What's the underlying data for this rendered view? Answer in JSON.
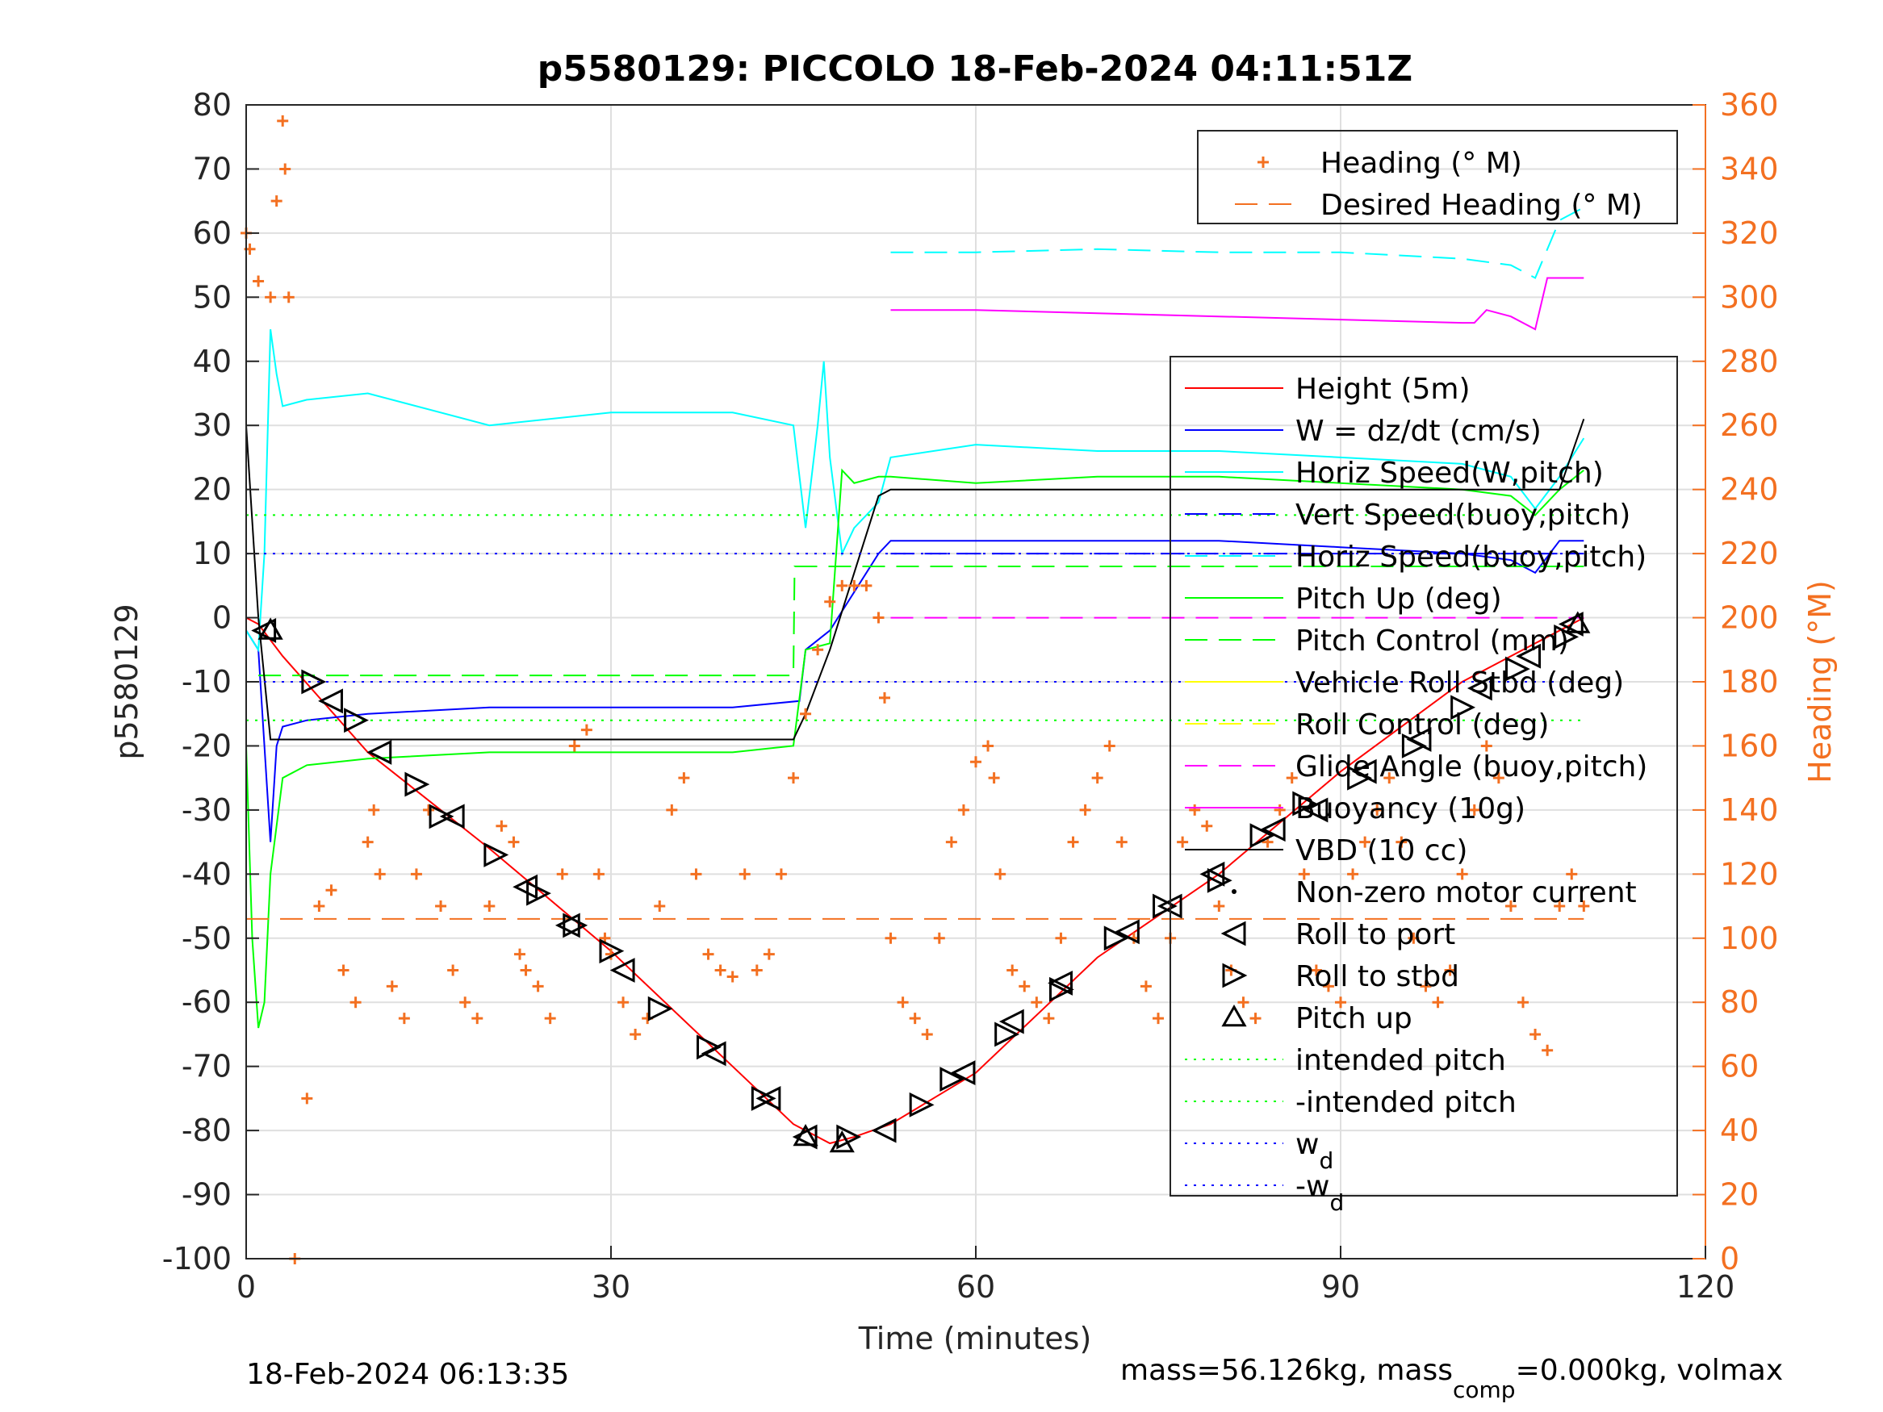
{
  "chart_data": {
    "type": "line",
    "title": "p5580129: PICCOLO 18-Feb-2024 04:11:51Z",
    "xlabel": "Time (minutes)",
    "ylabel": "p5580129",
    "y2label": "Heading (°M)",
    "xlim": [
      0,
      120
    ],
    "ylim": [
      -100,
      80
    ],
    "y2lim": [
      0,
      360
    ],
    "xticks": [
      0,
      30,
      60,
      90,
      120
    ],
    "yticks": [
      -100,
      -90,
      -80,
      -70,
      -60,
      -50,
      -40,
      -30,
      -20,
      -10,
      0,
      10,
      20,
      30,
      40,
      50,
      60,
      70,
      80
    ],
    "y2ticks": [
      0,
      20,
      40,
      60,
      80,
      100,
      120,
      140,
      160,
      180,
      200,
      220,
      240,
      260,
      280,
      300,
      320,
      340,
      360
    ],
    "grid": true,
    "footer_left": "18-Feb-2024 06:13:35",
    "footer_right_main": "mass=56.126kg, mass",
    "footer_right_sub": "comp",
    "footer_right_tail": "=0.000kg, volmax",
    "legend_top": [
      {
        "name": "Heading (° M)",
        "color": "#f37021",
        "style": "plus"
      },
      {
        "name": "Desired Heading (° M)",
        "color": "#f37021",
        "style": "dash"
      }
    ],
    "legend_main": [
      {
        "name": "Height (5m)",
        "color": "#ff0000",
        "style": "solid"
      },
      {
        "name": "W = dz/dt (cm/s)",
        "color": "#0000ff",
        "style": "solid"
      },
      {
        "name": "Horiz Speed(W,pitch)",
        "color": "#00ffff",
        "style": "solid"
      },
      {
        "name": "Vert Speed(buoy,pitch)",
        "color": "#0000ff",
        "style": "dash"
      },
      {
        "name": "Horiz Speed(buoy,pitch)",
        "color": "#00ffff",
        "style": "dash"
      },
      {
        "name": "Pitch Up (deg)",
        "color": "#00ff00",
        "style": "solid"
      },
      {
        "name": "Pitch Control (mm)",
        "color": "#00ff00",
        "style": "dash"
      },
      {
        "name": "Vehicle Roll Stbd (deg)",
        "color": "#ffff00",
        "style": "solid"
      },
      {
        "name": "Roll Control (deg)",
        "color": "#ffff00",
        "style": "dash"
      },
      {
        "name": "Glide Angle (buoy,pitch)",
        "color": "#ff00ff",
        "style": "dash"
      },
      {
        "name": "Buoyancy (10g)",
        "color": "#ff00ff",
        "style": "solid"
      },
      {
        "name": "VBD (10 cc)",
        "color": "#000000",
        "style": "solid"
      },
      {
        "name": "Non-zero motor current",
        "color": "#000000",
        "style": "dot"
      },
      {
        "name": "Roll to port",
        "color": "#000000",
        "style": "tri-left"
      },
      {
        "name": "Roll to stbd",
        "color": "#000000",
        "style": "tri-right"
      },
      {
        "name": "Pitch up",
        "color": "#000000",
        "style": "tri-up"
      },
      {
        "name": "intended pitch",
        "color": "#00ff00",
        "style": "dotted"
      },
      {
        "name": "-intended pitch",
        "color": "#00ff00",
        "style": "dotted"
      },
      {
        "name": "w",
        "sub": "d",
        "color": "#0000ff",
        "style": "dotted"
      },
      {
        "name": "-w",
        "sub": "d",
        "color": "#0000ff",
        "style": "dotted"
      }
    ],
    "series": [
      {
        "name": "Height (5m)",
        "axis": "left",
        "color": "#ff0000",
        "x": [
          0,
          1,
          3,
          10,
          20,
          30,
          40,
          45,
          48,
          50,
          53,
          60,
          70,
          80,
          90,
          100,
          110
        ],
        "y": [
          0,
          -1,
          -6,
          -21,
          -36,
          -52,
          -70,
          -79,
          -82,
          -81,
          -79,
          -71,
          -53,
          -40,
          -24,
          -10,
          0
        ]
      },
      {
        "name": "W = dz/dt (cm/s)",
        "axis": "left",
        "color": "#0000ff",
        "x": [
          0,
          1,
          1.5,
          2,
          2.5,
          3,
          5,
          10,
          20,
          30,
          40,
          45.5,
          46,
          48,
          50,
          52,
          53,
          60,
          70,
          80,
          90,
          100,
          104,
          106,
          108,
          110
        ],
        "y": [
          -2,
          -5,
          -20,
          -35,
          -20,
          -17,
          -16,
          -15,
          -14,
          -14,
          -14,
          -13,
          -5,
          -2,
          4,
          10,
          12,
          12,
          12,
          12,
          11,
          10,
          9,
          7,
          12,
          12
        ]
      },
      {
        "name": "Horiz Speed(W,pitch)",
        "axis": "left",
        "color": "#00ffff",
        "x": [
          0,
          1,
          1.5,
          2,
          2.5,
          3,
          5,
          10,
          20,
          30,
          40,
          45,
          46,
          47,
          47.5,
          48,
          49,
          50,
          52,
          53,
          60,
          70,
          80,
          90,
          100,
          104,
          106,
          108,
          110
        ],
        "y": [
          -2,
          -5,
          10,
          45,
          38,
          33,
          34,
          35,
          30,
          32,
          32,
          30,
          14,
          30,
          40,
          25,
          10,
          14,
          18,
          25,
          27,
          26,
          26,
          25,
          24,
          22,
          17,
          22,
          28
        ]
      },
      {
        "name": "Vert Speed(buoy,pitch)",
        "axis": "left",
        "color": "#0000ff",
        "x": [
          53,
          110
        ],
        "y": [
          10,
          10
        ]
      },
      {
        "name": "Horiz Speed(buoy,pitch)",
        "axis": "left",
        "color": "#00ffff",
        "x": [
          53,
          60,
          70,
          80,
          90,
          100,
          104,
          106,
          108,
          110
        ],
        "y": [
          57,
          57,
          57.5,
          57,
          57,
          56,
          55,
          53,
          62,
          64
        ]
      },
      {
        "name": "Pitch Up (deg)",
        "axis": "left",
        "color": "#00ff00",
        "x": [
          0,
          0.5,
          1,
          1.5,
          2,
          3,
          5,
          10,
          20,
          30,
          40,
          45,
          46,
          48,
          49,
          50,
          52,
          53,
          60,
          70,
          80,
          90,
          100,
          104,
          106,
          108,
          110
        ],
        "y": [
          -20,
          -50,
          -64,
          -60,
          -40,
          -25,
          -23,
          -22,
          -21,
          -21,
          -21,
          -20,
          -5,
          -4,
          23,
          21,
          22,
          22,
          21,
          22,
          22,
          21,
          20,
          19,
          16,
          20,
          23
        ]
      },
      {
        "name": "Pitch Control (mm)",
        "axis": "left",
        "color": "#00ff00",
        "x": [
          1,
          45,
          45.1,
          110
        ],
        "y": [
          -9,
          -9,
          8,
          8
        ]
      },
      {
        "name": "Glide Angle (buoy,pitch)",
        "axis": "left",
        "color": "#ff00ff",
        "x": [
          53,
          110
        ],
        "y": [
          0,
          0
        ]
      },
      {
        "name": "Buoyancy (10g)",
        "axis": "left",
        "color": "#ff00ff",
        "x": [
          53,
          60,
          70,
          80,
          90,
          100,
          101,
          102,
          104,
          106,
          107,
          110
        ],
        "y": [
          48,
          48,
          47.5,
          47,
          46.5,
          46,
          46,
          48,
          47,
          45,
          53,
          53
        ]
      },
      {
        "name": "VBD (10 cc)",
        "axis": "left",
        "color": "#000000",
        "x": [
          0,
          1,
          2,
          45,
          46,
          48,
          52,
          53,
          108,
          110
        ],
        "y": [
          30,
          0,
          -19,
          -19,
          -15,
          -5,
          19,
          20,
          20,
          31
        ]
      },
      {
        "name": "intended pitch",
        "axis": "left",
        "color": "#00ff00",
        "x": [
          0,
          110
        ],
        "y": [
          16,
          16
        ]
      },
      {
        "name": "-intended pitch",
        "axis": "left",
        "color": "#00ff00",
        "x": [
          0,
          110
        ],
        "y": [
          -16,
          -16
        ]
      },
      {
        "name": "w_d",
        "axis": "left",
        "color": "#0000ff",
        "x": [
          0,
          110
        ],
        "y": [
          10,
          10
        ]
      },
      {
        "name": "-w_d",
        "axis": "left",
        "color": "#0000ff",
        "x": [
          0,
          110
        ],
        "y": [
          -10,
          -10
        ]
      },
      {
        "name": "Desired Heading (° M)",
        "axis": "right",
        "color": "#f37021",
        "x": [
          0,
          110
        ],
        "y": [
          106,
          106
        ]
      },
      {
        "name": "Heading (° M)",
        "axis": "right",
        "color": "#f37021",
        "style": "plus",
        "x": [
          0,
          0.3,
          1,
          2,
          2.5,
          3,
          3.2,
          3.5,
          4,
          5,
          6,
          7,
          8,
          9,
          10,
          10.5,
          11,
          12,
          13,
          14,
          15,
          16,
          17,
          18,
          19,
          20,
          21,
          22,
          22.5,
          23,
          24,
          25,
          26,
          27,
          28,
          29,
          29.5,
          30,
          31,
          32,
          33,
          34,
          35,
          36,
          37,
          38,
          39,
          40,
          41,
          42,
          43,
          44,
          45,
          46,
          47,
          48,
          49,
          50,
          51,
          52,
          52.5,
          53,
          54,
          55,
          56,
          57,
          58,
          59,
          60,
          61,
          61.5,
          62,
          63,
          64,
          65,
          66,
          67,
          68,
          69,
          70,
          71,
          72,
          73,
          74,
          75,
          76,
          77,
          78,
          79,
          80,
          81,
          82,
          83,
          84,
          85,
          86,
          87,
          88,
          89,
          90,
          91,
          92,
          93,
          94,
          95,
          96,
          97,
          98,
          99,
          100,
          101,
          102,
          103,
          104,
          105,
          106,
          107,
          108,
          109,
          110
        ],
        "y": [
          320,
          315,
          305,
          300,
          330,
          355,
          340,
          300,
          0,
          50,
          110,
          115,
          90,
          80,
          130,
          140,
          120,
          85,
          75,
          120,
          140,
          110,
          90,
          80,
          75,
          110,
          135,
          130,
          95,
          90,
          85,
          75,
          120,
          160,
          165,
          120,
          100,
          95,
          80,
          70,
          75,
          110,
          140,
          150,
          120,
          95,
          90,
          88,
          120,
          90,
          95,
          120,
          150,
          170,
          190,
          205,
          210,
          210,
          210,
          200,
          175,
          100,
          80,
          75,
          70,
          100,
          130,
          140,
          155,
          160,
          150,
          120,
          90,
          85,
          80,
          75,
          100,
          130,
          140,
          150,
          160,
          130,
          100,
          85,
          75,
          100,
          130,
          140,
          135,
          110,
          90,
          80,
          75,
          130,
          140,
          150,
          120,
          90,
          85,
          80,
          120,
          130,
          140,
          150,
          130,
          100,
          85,
          80,
          90,
          120,
          140,
          160,
          150,
          110,
          80,
          70,
          65,
          110,
          120,
          110
        ]
      }
    ],
    "markers": {
      "roll_to_port": {
        "x": [
          1.5,
          7,
          11,
          17,
          23,
          26.5,
          31,
          38.5,
          43,
          46,
          52.5,
          59,
          63,
          67,
          72.5,
          76,
          79.5,
          84.5,
          88,
          92,
          96.5,
          101.5,
          105.5,
          109
        ],
        "y": [
          -2,
          -13,
          -21,
          -31,
          -42,
          -48,
          -55,
          -68,
          -75,
          -81,
          -80,
          -71,
          -63,
          -57,
          -49,
          -45,
          -40,
          -33,
          -30,
          -24,
          -19,
          -11,
          -6,
          -1
        ]
      },
      "roll_to_stbd": {
        "x": [
          5.5,
          9,
          14,
          16,
          20.5,
          24,
          27,
          30,
          34,
          38,
          42.5,
          49.5,
          55.5,
          58,
          62.5,
          67,
          71.5,
          75.5,
          80,
          83.5,
          87,
          91.5,
          96,
          100,
          104.5,
          108.5
        ],
        "y": [
          -10,
          -16,
          -26,
          -31,
          -37,
          -43,
          -48,
          -52,
          -61,
          -67,
          -75,
          -81,
          -76,
          -72,
          -65,
          -58,
          -50,
          -45,
          -41,
          -34,
          -29,
          -25,
          -20,
          -14,
          -8,
          -3
        ]
      },
      "pitch_up": {
        "x": [
          2,
          46,
          49,
          109.5
        ],
        "y": [
          -2,
          -81,
          -82,
          -1
        ]
      }
    }
  }
}
